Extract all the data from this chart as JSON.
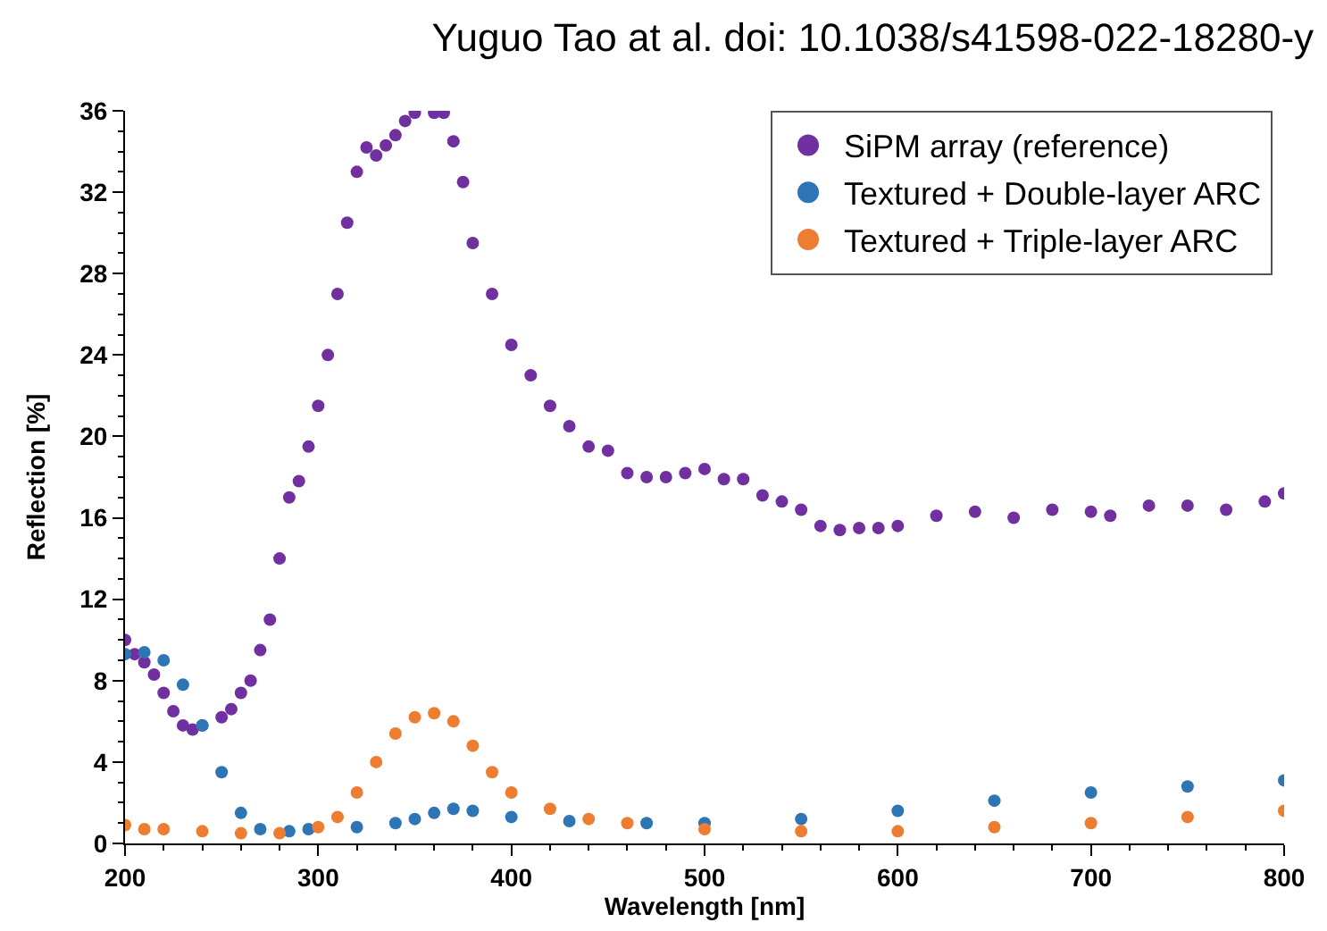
{
  "chart_data": {
    "type": "scatter",
    "title": "Yuguo Tao at al. doi: 10.1038/s41598-022-18280-y",
    "xlabel": "Wavelength [nm]",
    "ylabel": "Reflection [%]",
    "xlim": [
      200,
      800
    ],
    "xticks": [
      200,
      300,
      400,
      500,
      600,
      700,
      800
    ],
    "ylim": [
      0,
      36
    ],
    "yticks": [
      0,
      4,
      8,
      12,
      16,
      20,
      24,
      28,
      32,
      36
    ],
    "grid": false,
    "legend": "top right",
    "marker": "circle",
    "series": [
      {
        "name": "SiPM array (reference)",
        "color": "#7030a0",
        "x": [
          200,
          205,
          210,
          215,
          220,
          225,
          230,
          235,
          240,
          250,
          255,
          260,
          265,
          270,
          275,
          280,
          285,
          290,
          295,
          300,
          305,
          310,
          315,
          320,
          325,
          330,
          335,
          340,
          345,
          350,
          360,
          365,
          370,
          375,
          380,
          390,
          400,
          410,
          420,
          430,
          440,
          450,
          460,
          470,
          480,
          490,
          500,
          510,
          520,
          530,
          540,
          550,
          560,
          570,
          580,
          590,
          600,
          620,
          640,
          660,
          680,
          700,
          710,
          730,
          750,
          770,
          790,
          800
        ],
        "values": [
          10.0,
          9.3,
          8.9,
          8.3,
          7.4,
          6.5,
          5.8,
          5.6,
          5.8,
          6.2,
          6.6,
          7.4,
          8.0,
          9.5,
          11.0,
          14.0,
          17.0,
          17.8,
          19.5,
          21.5,
          24,
          27,
          30.5,
          33,
          34.2,
          33.8,
          34.3,
          34.8,
          35.5,
          35.9,
          35.9,
          35.9,
          34.5,
          32.5,
          29.5,
          27,
          24.5,
          23,
          21.5,
          20.5,
          19.5,
          19.3,
          18.2,
          18.0,
          18.0,
          18.2,
          18.4,
          17.9,
          17.9,
          17.1,
          16.8,
          16.4,
          15.6,
          15.4,
          15.5,
          15.5,
          15.6,
          16.1,
          16.3,
          16.0,
          16.4,
          16.3,
          16.1,
          16.6,
          16.6,
          16.4,
          16.8,
          17.2
        ]
      },
      {
        "name": "Textured + Double-layer ARC",
        "color": "#2e75b6",
        "x": [
          200,
          210,
          220,
          230,
          240,
          250,
          260,
          270,
          285,
          295,
          320,
          340,
          350,
          360,
          370,
          380,
          400,
          430,
          470,
          500,
          550,
          600,
          650,
          700,
          750,
          800
        ],
        "values": [
          9.3,
          9.4,
          9.0,
          7.8,
          5.8,
          3.5,
          1.5,
          0.7,
          0.6,
          0.7,
          0.8,
          1.0,
          1.2,
          1.5,
          1.7,
          1.6,
          1.3,
          1.1,
          1.0,
          1.0,
          1.2,
          1.6,
          2.1,
          2.5,
          2.8,
          3.1
        ]
      },
      {
        "name": "Textured + Triple-layer ARC",
        "color": "#ed7d31",
        "x": [
          200,
          210,
          220,
          240,
          260,
          280,
          300,
          310,
          320,
          330,
          340,
          350,
          360,
          370,
          380,
          390,
          400,
          420,
          440,
          460,
          500,
          550,
          600,
          650,
          700,
          750,
          800
        ],
        "values": [
          0.9,
          0.7,
          0.7,
          0.6,
          0.5,
          0.5,
          0.8,
          1.3,
          2.5,
          4.0,
          5.4,
          6.2,
          6.4,
          6.0,
          4.8,
          3.5,
          2.5,
          1.7,
          1.2,
          1.0,
          0.7,
          0.6,
          0.6,
          0.8,
          1.0,
          1.3,
          1.6
        ]
      }
    ]
  }
}
